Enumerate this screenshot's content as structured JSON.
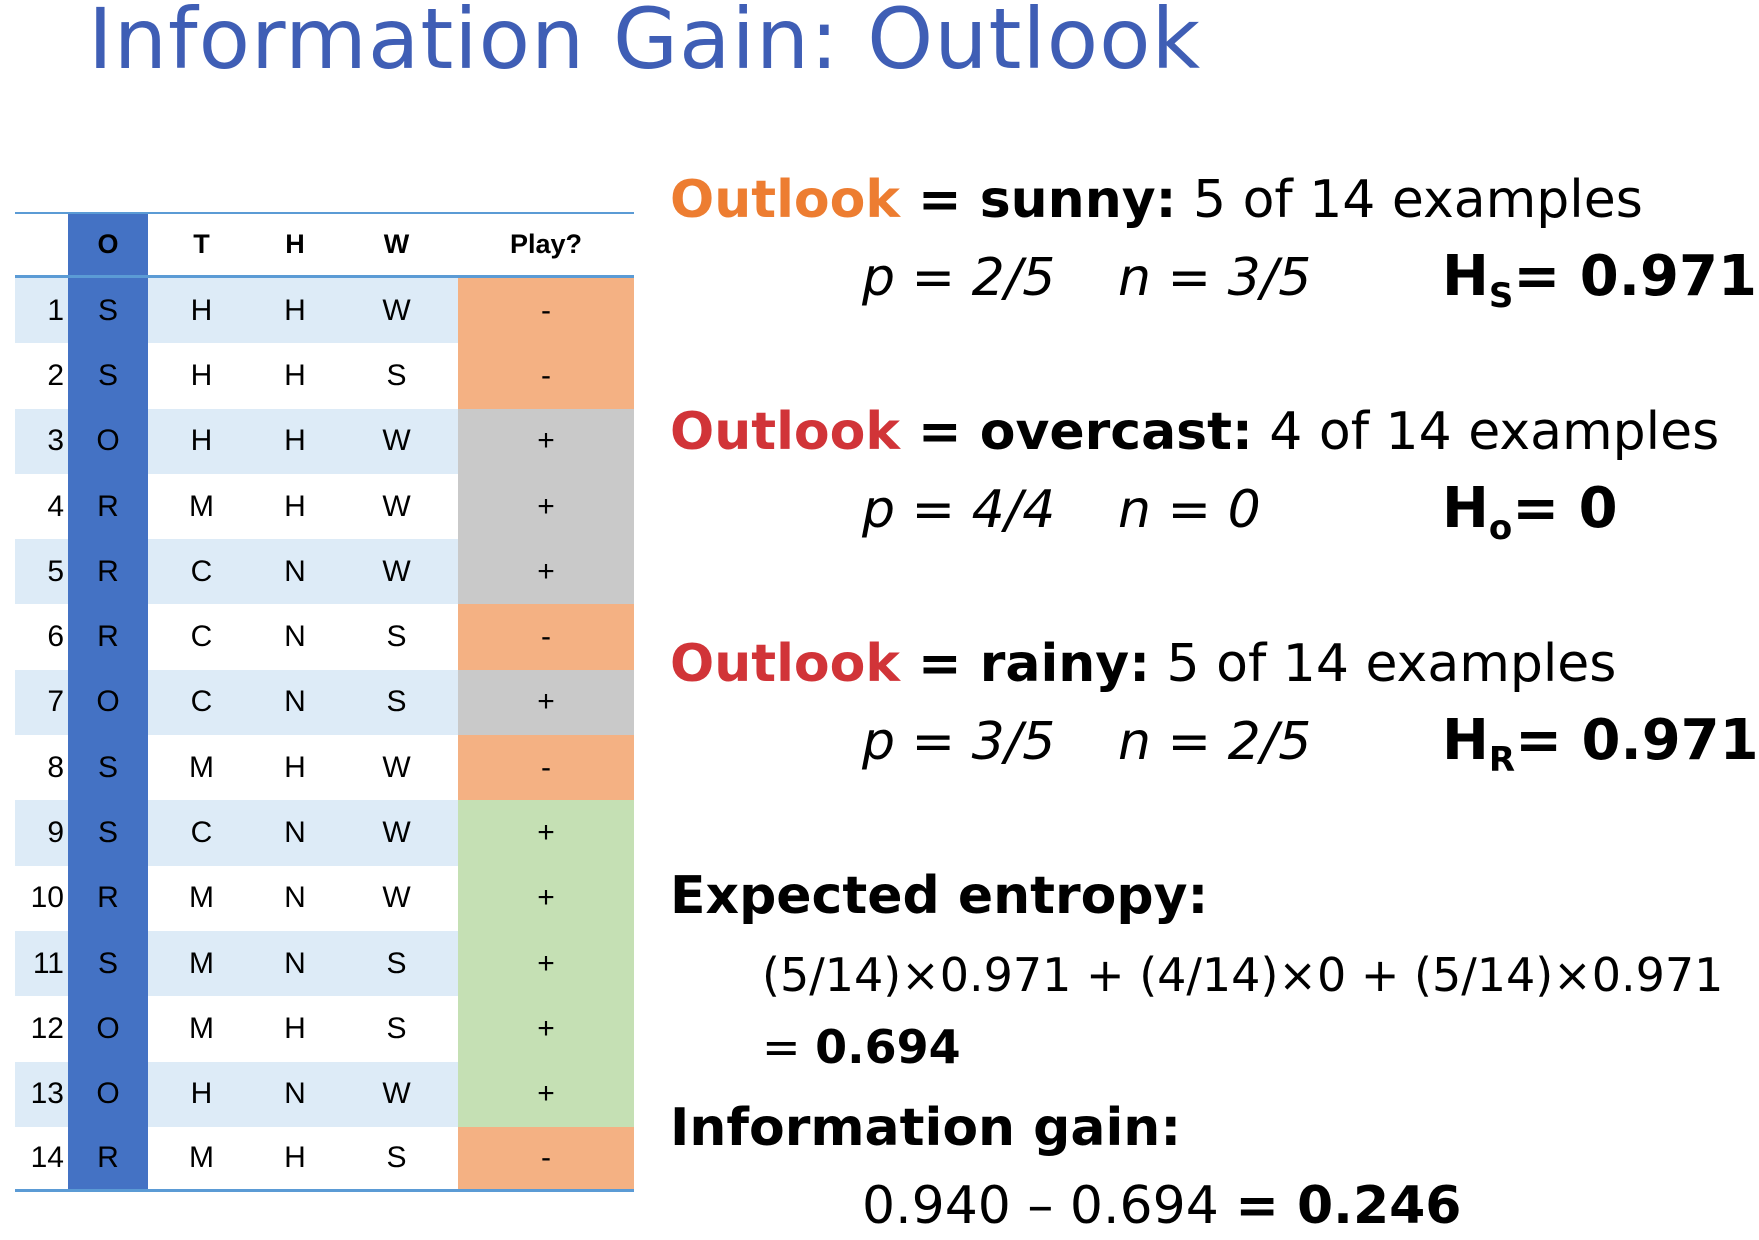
{
  "title": "Information Gain: Outlook",
  "table": {
    "headers": [
      "",
      "O",
      "T",
      "H",
      "W",
      "Play?"
    ],
    "rows": [
      {
        "n": "1",
        "o": "S",
        "t": "H",
        "h": "H",
        "w": "W",
        "play": "-",
        "color": "neg"
      },
      {
        "n": "2",
        "o": "S",
        "t": "H",
        "h": "H",
        "w": "S",
        "play": "-",
        "color": "neg"
      },
      {
        "n": "3",
        "o": "O",
        "t": "H",
        "h": "H",
        "w": "W",
        "play": "+",
        "color": "gray"
      },
      {
        "n": "4",
        "o": "R",
        "t": "M",
        "h": "H",
        "w": "W",
        "play": "+",
        "color": "gray"
      },
      {
        "n": "5",
        "o": "R",
        "t": "C",
        "h": "N",
        "w": "W",
        "play": "+",
        "color": "gray"
      },
      {
        "n": "6",
        "o": "R",
        "t": "C",
        "h": "N",
        "w": "S",
        "play": "-",
        "color": "neg"
      },
      {
        "n": "7",
        "o": "O",
        "t": "C",
        "h": "N",
        "w": "S",
        "play": "+",
        "color": "gray"
      },
      {
        "n": "8",
        "o": "S",
        "t": "M",
        "h": "H",
        "w": "W",
        "play": "-",
        "color": "neg"
      },
      {
        "n": "9",
        "o": "S",
        "t": "C",
        "h": "N",
        "w": "W",
        "play": "+",
        "color": "green"
      },
      {
        "n": "10",
        "o": "R",
        "t": "M",
        "h": "N",
        "w": "W",
        "play": "+",
        "color": "green"
      },
      {
        "n": "11",
        "o": "S",
        "t": "M",
        "h": "N",
        "w": "S",
        "play": "+",
        "color": "green"
      },
      {
        "n": "12",
        "o": "O",
        "t": "M",
        "h": "H",
        "w": "S",
        "play": "+",
        "color": "green"
      },
      {
        "n": "13",
        "o": "O",
        "t": "H",
        "h": "N",
        "w": "W",
        "play": "+",
        "color": "green"
      },
      {
        "n": "14",
        "o": "R",
        "t": "M",
        "h": "H",
        "w": "S",
        "play": "-",
        "color": "neg"
      }
    ]
  },
  "sunny": {
    "kw": "Outlook",
    "cond": " = sunny:",
    "count": " 5 of 14 examples",
    "p": "p = 2/5",
    "n": "n = 3/5",
    "h_label": "H",
    "h_sub": "S",
    "h_value": "= 0.971"
  },
  "overcast": {
    "kw": "Outlook",
    "cond": " = overcast:",
    "count": " 4 of 14 examples",
    "p": "p = 4/4",
    "n": "n = 0",
    "h_label": "H",
    "h_sub": "o",
    "h_value": "= 0"
  },
  "rainy": {
    "kw": "Outlook",
    "cond": " = rainy:",
    "count": " 5 of 14 examples",
    "p": "p = 3/5",
    "n": "n = 2/5",
    "h_label": "H",
    "h_sub": "R",
    "h_value": "= 0.971"
  },
  "expected": {
    "heading": "Expected entropy:",
    "formula": "(5/14)×0.971 + (4/14)×0  + (5/14)×0.971",
    "eq": "= ",
    "result": "0.694"
  },
  "gain": {
    "heading": "Information gain:",
    "formula": "0.940 – 0.694 ",
    "result": "= 0.246"
  }
}
